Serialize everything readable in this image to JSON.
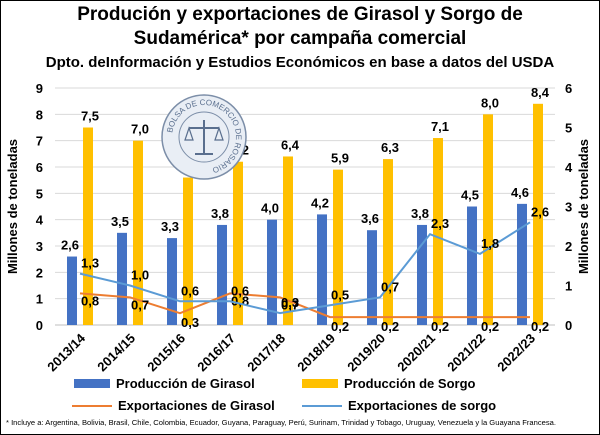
{
  "header": {
    "title_line1": "Produción y exportaciones de Girasol y Sorgo de",
    "title_line2": "Sudamérica* por campaña comercial",
    "subtitle": "Dpto. deInformación y Estudios Económicos en base a datos del USDA"
  },
  "footnote": "* Incluye a: Argentina, Bolivia, Brasil, Chile, Colombia, Ecuador, Guyana, Paraguay, Perú, Surinam, Trinidad y Tobago, Uruguay, Venezuela y la Guayana Francesa.",
  "logo_text": "BOLSA DE COMERCIO DE ROSARIO",
  "chart_data": {
    "type": "bar",
    "categories": [
      "2013/14",
      "2014/15",
      "2015/16",
      "2016/17",
      "2017/18",
      "2018/19",
      "2019/20",
      "2020/21",
      "2021/22",
      "2022/23"
    ],
    "ylabel": "Millones de toneladas",
    "y2label": "Millones de toneladas",
    "ylim": [
      0,
      9
    ],
    "y2lim": [
      0,
      6
    ],
    "yticks": [
      "0",
      "1",
      "2",
      "3",
      "4",
      "5",
      "6",
      "7",
      "8",
      "9"
    ],
    "y2ticks": [
      "0",
      "1",
      "2",
      "3",
      "4",
      "5",
      "6"
    ],
    "grid": true,
    "legend_position": "bottom",
    "series": [
      {
        "name": "Producción de Girasol",
        "type": "bar",
        "axis": "left",
        "color": "#4472C4",
        "values": [
          2.6,
          3.5,
          3.3,
          3.8,
          4.0,
          4.2,
          3.6,
          3.8,
          4.5,
          4.6
        ],
        "labels": [
          "2,6",
          "3,5",
          "3,3",
          "3,8",
          "4,0",
          "4,2",
          "3,6",
          "3,8",
          "4,5",
          "4,6"
        ]
      },
      {
        "name": "Producción de Sorgo",
        "type": "bar",
        "axis": "left",
        "color": "#FFC000",
        "values": [
          7.5,
          7.0,
          5.6,
          6.2,
          6.4,
          5.9,
          6.3,
          7.1,
          8.0,
          8.4
        ],
        "labels": [
          "7,5",
          "7,0",
          "5,6",
          "6,2",
          "6,4",
          "5,9",
          "6,3",
          "7,1",
          "8,0",
          "8,4"
        ]
      },
      {
        "name": "Exportaciones de Girasol",
        "type": "line",
        "axis": "right",
        "color": "#ED7D31",
        "values": [
          0.8,
          0.7,
          0.3,
          0.8,
          0.7,
          0.2,
          0.2,
          0.2,
          0.2,
          0.2
        ],
        "labels": [
          "0,8",
          "0,7",
          "0,3",
          "0,8",
          "0,7",
          "0,2",
          "0,2",
          "0,2",
          "0,2",
          "0,2"
        ]
      },
      {
        "name": "Exportaciones de sorgo",
        "type": "line",
        "axis": "right",
        "color": "#5B9BD5",
        "values": [
          1.3,
          1.0,
          0.6,
          0.6,
          0.3,
          0.5,
          0.7,
          2.3,
          1.8,
          2.6
        ],
        "labels": [
          "1,3",
          "1,0",
          "0,6",
          "0,6",
          "0,3",
          "0,5",
          "0,7",
          "2,3",
          "1,8",
          "2,6"
        ]
      }
    ]
  }
}
